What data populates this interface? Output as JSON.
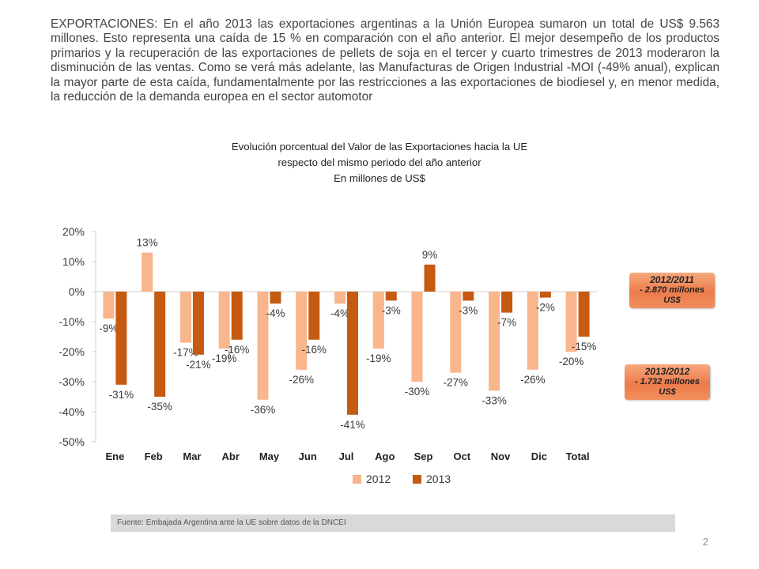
{
  "intro_text": "EXPORTACIONES: En el año 2013 las exportaciones argentinas a la Unión Europea sumaron un total de US$ 9.563 millones. Esto representa una caída de 15 % en comparación con el año anterior. El mejor desempeño de los productos primarios y la recuperación de las exportaciones de pellets de soja en el tercer y cuarto trimestres de 2013 moderaron la disminución de las ventas. Como se verá más adelante, las Manufacturas de Origen Industrial -MOI (-49% anual), explican la mayor parte de esta caída, fundamentalmente por las restricciones a las exportaciones de biodiesel y, en menor medida, la reducción de la demanda europea en el sector automotor",
  "chart_title_lines": [
    "Evolución porcentual del Valor de las Exportaciones hacia la UE",
    "respecto del mismo periodo del año anterior",
    "En millones de US$"
  ],
  "badges": [
    {
      "title": "2012/2011",
      "line1": "- 2.870 millones",
      "line2": "US$"
    },
    {
      "title": "2013/2012",
      "line1": "- 1.732 millones",
      "line2": "US$"
    }
  ],
  "footer_source": "Fuente: Embajada  Argentina ante la UE sobre datos de la DNCEI",
  "page_number": "2",
  "colors": {
    "series_2012": "#f9b58c",
    "series_2013": "#c55a11",
    "axis": "#d0d0d0"
  },
  "chart_data": {
    "type": "bar",
    "categories": [
      "Ene",
      "Feb",
      "Mar",
      "Abr",
      "May",
      "Jun",
      "Jul",
      "Ago",
      "Sep",
      "Oct",
      "Nov",
      "Dic",
      "Total"
    ],
    "series": [
      {
        "name": "2012",
        "values": [
          -9,
          13,
          -17,
          -19,
          -36,
          -26,
          -4,
          -19,
          -30,
          -27,
          -33,
          -26,
          -20
        ]
      },
      {
        "name": "2013",
        "values": [
          -31,
          -35,
          -21,
          -16,
          -4,
          -16,
          -41,
          -3,
          9,
          -3,
          -7,
          -2,
          -15
        ]
      }
    ],
    "data_labels": {
      "2012": [
        "-9%",
        "13%",
        "-17%",
        "-19%",
        "-36%",
        "-26%",
        "-4%",
        "-19%",
        "-30%",
        "-27%",
        "-33%",
        "-26%",
        "-20%"
      ],
      "2013": [
        "-31%",
        "-35%",
        "-21%",
        "-16%",
        "-4%",
        "-16%",
        "-41%",
        "-3%",
        "9%",
        "-3%",
        "-7%",
        "-2%",
        "-15%"
      ]
    },
    "y_ticks": [
      20,
      10,
      0,
      -10,
      -20,
      -30,
      -40,
      -50
    ],
    "y_tick_labels": [
      "20%",
      "10%",
      "0%",
      "-10%",
      "-20%",
      "-30%",
      "-40%",
      "-50%"
    ],
    "ylim": [
      -50,
      20
    ],
    "grid": false,
    "legend": "bottom"
  }
}
